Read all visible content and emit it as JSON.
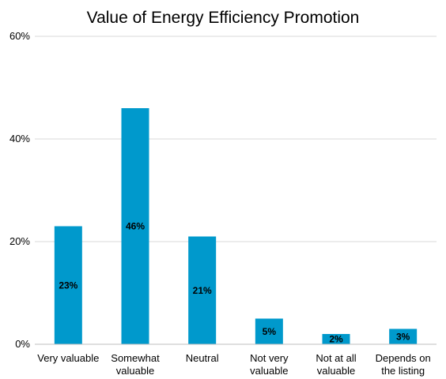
{
  "chart_data": {
    "type": "bar",
    "title": "Value of Energy Efficiency Promotion",
    "xlabel": "",
    "ylabel": "",
    "categories": [
      [
        "Very valuable"
      ],
      [
        "Somewhat",
        "valuable"
      ],
      [
        "Neutral"
      ],
      [
        "Not very",
        "valuable"
      ],
      [
        "Not at all",
        "valuable"
      ],
      [
        "Depends on",
        "the listing"
      ]
    ],
    "values": [
      23,
      46,
      21,
      5,
      2,
      3
    ],
    "data_labels": [
      "23%",
      "46%",
      "21%",
      "5%",
      "2%",
      "3%"
    ],
    "ylim": [
      0,
      60
    ],
    "yticks": [
      0,
      20,
      40,
      60
    ],
    "ytick_labels": [
      "0%",
      "20%",
      "40%",
      "60%"
    ],
    "grid": true,
    "legend": "none",
    "bar_color": "#0099cc",
    "gridline_color": "#d9d9d9"
  }
}
